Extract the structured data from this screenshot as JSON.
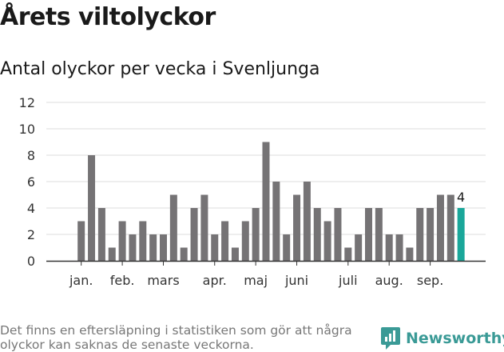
{
  "header": {
    "title": "Årets viltolyckor",
    "subtitle": "Antal olyckor per vecka i Svenljunga"
  },
  "footer": {
    "note": "Det finns en eftersläpning i statistiken som gör att några olyckor kan saknas de senaste veckorna.",
    "brand": "Newsworthy"
  },
  "colors": {
    "bar": "#757375",
    "highlight": "#1aa79a",
    "grid": "#dddddd",
    "axis": "#333333",
    "brand": "#3a9a96"
  },
  "chart_data": {
    "type": "bar",
    "title": "Antal olyckor per vecka i Svenljunga",
    "xlabel": "",
    "ylabel": "",
    "ylim": [
      0,
      12
    ],
    "yticks": [
      0,
      2,
      4,
      6,
      8,
      10,
      12
    ],
    "grid": true,
    "weeks": [
      1,
      2,
      3,
      4,
      5,
      6,
      7,
      8,
      9,
      10,
      11,
      12,
      13,
      14,
      15,
      16,
      17,
      18,
      19,
      20,
      21,
      22,
      23,
      24,
      25,
      26,
      27,
      28,
      29,
      30,
      31,
      32,
      33,
      34,
      35,
      36,
      37,
      38,
      39,
      40,
      41
    ],
    "values": [
      0,
      0,
      3,
      8,
      4,
      1,
      3,
      2,
      3,
      2,
      2,
      5,
      1,
      4,
      5,
      2,
      3,
      1,
      3,
      4,
      9,
      6,
      2,
      5,
      6,
      4,
      3,
      4,
      1,
      2,
      4,
      4,
      2,
      2,
      1,
      4,
      4,
      5,
      5,
      4,
      0
    ],
    "highlight_index": 39,
    "highlight_label": "4",
    "month_labels": [
      {
        "label": "jan.",
        "week": 3
      },
      {
        "label": "feb.",
        "week": 7
      },
      {
        "label": "mars",
        "week": 11
      },
      {
        "label": "apr.",
        "week": 16
      },
      {
        "label": "maj",
        "week": 20
      },
      {
        "label": "juni",
        "week": 24
      },
      {
        "label": "juli",
        "week": 29
      },
      {
        "label": "aug.",
        "week": 33
      },
      {
        "label": "sep.",
        "week": 37
      }
    ]
  }
}
